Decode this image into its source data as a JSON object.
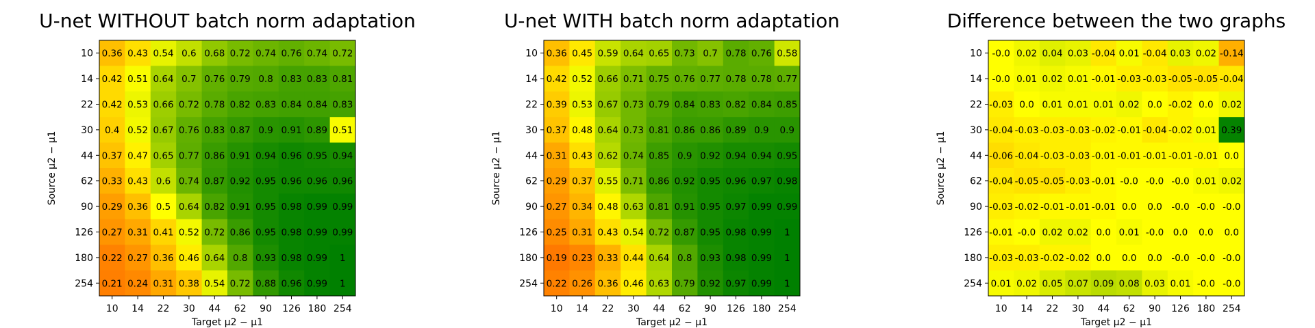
{
  "chart_data": [
    {
      "type": "heatmap",
      "title": "U-net WITHOUT batch norm adaptation",
      "xlabel": "Target μ2 − μ1",
      "ylabel": "Source μ2 − μ1",
      "x": [
        "10",
        "14",
        "22",
        "30",
        "44",
        "62",
        "90",
        "126",
        "180",
        "254"
      ],
      "y": [
        "10",
        "14",
        "22",
        "30",
        "44",
        "62",
        "90",
        "126",
        "180",
        "254"
      ],
      "values": [
        [
          0.36,
          0.43,
          0.54,
          0.6,
          0.68,
          0.72,
          0.74,
          0.76,
          0.74,
          0.72
        ],
        [
          0.42,
          0.51,
          0.64,
          0.7,
          0.76,
          0.79,
          0.8,
          0.83,
          0.83,
          0.81
        ],
        [
          0.42,
          0.53,
          0.66,
          0.72,
          0.78,
          0.82,
          0.83,
          0.84,
          0.84,
          0.83
        ],
        [
          0.4,
          0.52,
          0.67,
          0.76,
          0.83,
          0.87,
          0.9,
          0.91,
          0.89,
          0.51
        ],
        [
          0.37,
          0.47,
          0.65,
          0.77,
          0.86,
          0.91,
          0.94,
          0.96,
          0.95,
          0.94
        ],
        [
          0.33,
          0.43,
          0.6,
          0.74,
          0.87,
          0.92,
          0.95,
          0.96,
          0.96,
          0.96
        ],
        [
          0.29,
          0.36,
          0.5,
          0.64,
          0.82,
          0.91,
          0.95,
          0.98,
          0.99,
          0.99
        ],
        [
          0.27,
          0.31,
          0.41,
          0.52,
          0.72,
          0.86,
          0.95,
          0.98,
          0.99,
          0.99
        ],
        [
          0.22,
          0.27,
          0.36,
          0.46,
          0.64,
          0.8,
          0.93,
          0.98,
          0.99,
          1.0
        ],
        [
          0.21,
          0.24,
          0.31,
          0.38,
          0.54,
          0.72,
          0.88,
          0.96,
          0.99,
          1.0
        ]
      ],
      "colormap": "red-yellow-green",
      "vrange": [
        0.0,
        1.0
      ]
    },
    {
      "type": "heatmap",
      "title": "U-net WITH batch norm adaptation",
      "xlabel": "Target μ2 − μ1",
      "ylabel": "Source μ2 − μ1",
      "x": [
        "10",
        "14",
        "22",
        "30",
        "44",
        "62",
        "90",
        "126",
        "180",
        "254"
      ],
      "y": [
        "10",
        "14",
        "22",
        "30",
        "44",
        "62",
        "90",
        "126",
        "180",
        "254"
      ],
      "values": [
        [
          0.36,
          0.45,
          0.59,
          0.64,
          0.65,
          0.73,
          0.7,
          0.78,
          0.76,
          0.58
        ],
        [
          0.42,
          0.52,
          0.66,
          0.71,
          0.75,
          0.76,
          0.77,
          0.78,
          0.78,
          0.77
        ],
        [
          0.39,
          0.53,
          0.67,
          0.73,
          0.79,
          0.84,
          0.83,
          0.82,
          0.84,
          0.85
        ],
        [
          0.37,
          0.48,
          0.64,
          0.73,
          0.81,
          0.86,
          0.86,
          0.89,
          0.9,
          0.9
        ],
        [
          0.31,
          0.43,
          0.62,
          0.74,
          0.85,
          0.9,
          0.92,
          0.94,
          0.94,
          0.95
        ],
        [
          0.29,
          0.37,
          0.55,
          0.71,
          0.86,
          0.92,
          0.95,
          0.96,
          0.97,
          0.98
        ],
        [
          0.27,
          0.34,
          0.48,
          0.63,
          0.81,
          0.91,
          0.95,
          0.97,
          0.99,
          0.99
        ],
        [
          0.25,
          0.31,
          0.43,
          0.54,
          0.72,
          0.87,
          0.95,
          0.98,
          0.99,
          1.0
        ],
        [
          0.19,
          0.23,
          0.33,
          0.44,
          0.64,
          0.8,
          0.93,
          0.98,
          0.99,
          1.0
        ],
        [
          0.22,
          0.26,
          0.36,
          0.46,
          0.63,
          0.79,
          0.92,
          0.97,
          0.99,
          1.0
        ]
      ],
      "colormap": "red-yellow-green",
      "vrange": [
        0.0,
        1.0
      ]
    },
    {
      "type": "heatmap",
      "title": "Difference between the two graphs",
      "xlabel": "Target μ2 − μ1",
      "ylabel": "Source μ2 − μ1",
      "x": [
        "10",
        "14",
        "22",
        "30",
        "44",
        "62",
        "90",
        "126",
        "180",
        "254"
      ],
      "y": [
        "10",
        "14",
        "22",
        "30",
        "44",
        "62",
        "90",
        "126",
        "180",
        "254"
      ],
      "values": [
        [
          "-0.0",
          "0.02",
          "0.04",
          "0.03",
          "-0.04",
          "0.01",
          "-0.04",
          "0.03",
          "0.02",
          "-0.14"
        ],
        [
          "-0.0",
          "0.01",
          "0.02",
          "0.01",
          "-0.01",
          "-0.03",
          "-0.03",
          "-0.05",
          "-0.05",
          "-0.04"
        ],
        [
          "-0.03",
          "0.0",
          "0.01",
          "0.01",
          "0.01",
          "0.02",
          "0.0",
          "-0.02",
          "0.0",
          "0.02"
        ],
        [
          "-0.04",
          "-0.03",
          "-0.03",
          "-0.03",
          "-0.02",
          "-0.01",
          "-0.04",
          "-0.02",
          "0.01",
          "0.39"
        ],
        [
          "-0.06",
          "-0.04",
          "-0.03",
          "-0.03",
          "-0.01",
          "-0.01",
          "-0.01",
          "-0.01",
          "-0.01",
          "0.0"
        ],
        [
          "-0.04",
          "-0.05",
          "-0.05",
          "-0.03",
          "-0.01",
          "-0.0",
          "-0.0",
          "-0.0",
          "0.01",
          "0.02"
        ],
        [
          "-0.03",
          "-0.02",
          "-0.01",
          "-0.01",
          "-0.01",
          "0.0",
          "0.0",
          "-0.0",
          "-0.0",
          "-0.0"
        ],
        [
          "-0.01",
          "-0.0",
          "0.02",
          "0.02",
          "0.0",
          "0.01",
          "-0.0",
          "0.0",
          "0.0",
          "0.0"
        ],
        [
          "-0.03",
          "-0.03",
          "-0.02",
          "-0.02",
          "0.0",
          "0.0",
          "0.0",
          "-0.0",
          "-0.0",
          "-0.0"
        ],
        [
          "0.01",
          "0.02",
          "0.05",
          "0.07",
          "0.09",
          "0.08",
          "0.03",
          "0.01",
          "-0.0",
          "-0.0"
        ]
      ],
      "colormap": "red-yellow-green",
      "vrange": [
        -0.4,
        0.4
      ]
    }
  ]
}
